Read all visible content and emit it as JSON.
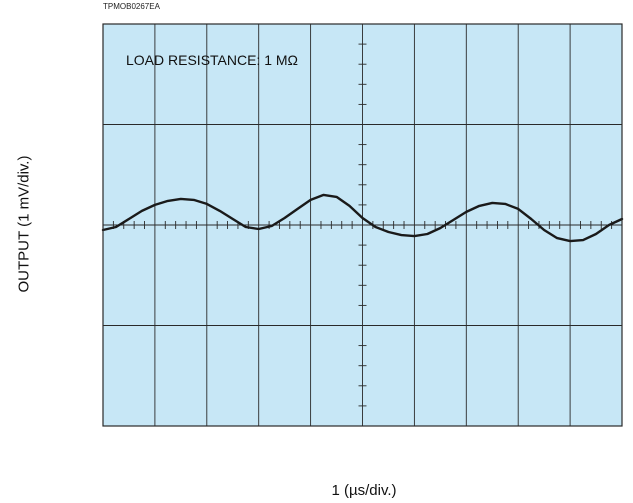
{
  "figure_code": "TPMOB0267EA",
  "annotation": "LOAD RESISTANCE: 1 MΩ",
  "colors": {
    "screen": "#c7e7f6",
    "grid": "#2a2a2a",
    "trace": "#1a1a1a"
  },
  "chart_data": {
    "type": "line",
    "title": "",
    "xlabel": "1 (µs/div.)",
    "ylabel": "OUTPUT (1 mV/div.)",
    "x_unit": "µs",
    "y_unit": "mV",
    "xlim": [
      0,
      10
    ],
    "ylim": [
      -2,
      2
    ],
    "x_divisions": 10,
    "y_divisions": 4,
    "grid": true,
    "series": [
      {
        "x": [
          0,
          0.25,
          0.5,
          0.75,
          1.0,
          1.25,
          1.5,
          1.75,
          2.0,
          2.25,
          2.5,
          2.75,
          3.0,
          3.25,
          3.5,
          3.75,
          4.0,
          4.25,
          4.5,
          4.75,
          5.0,
          5.25,
          5.5,
          5.75,
          6.0,
          6.25,
          6.5,
          6.75,
          7.0,
          7.25,
          7.5,
          7.75,
          8.0,
          8.25,
          8.5,
          8.75,
          9.0,
          9.25,
          9.5,
          9.75,
          10.0
        ],
        "y": [
          -0.05,
          -0.02,
          0.06,
          0.14,
          0.2,
          0.24,
          0.26,
          0.25,
          0.21,
          0.14,
          0.06,
          -0.02,
          -0.04,
          -0.01,
          0.07,
          0.16,
          0.25,
          0.3,
          0.28,
          0.19,
          0.07,
          -0.02,
          -0.07,
          -0.1,
          -0.11,
          -0.09,
          -0.03,
          0.05,
          0.13,
          0.19,
          0.22,
          0.21,
          0.16,
          0.06,
          -0.05,
          -0.13,
          -0.16,
          -0.15,
          -0.09,
          0.0,
          0.06
        ]
      }
    ]
  }
}
